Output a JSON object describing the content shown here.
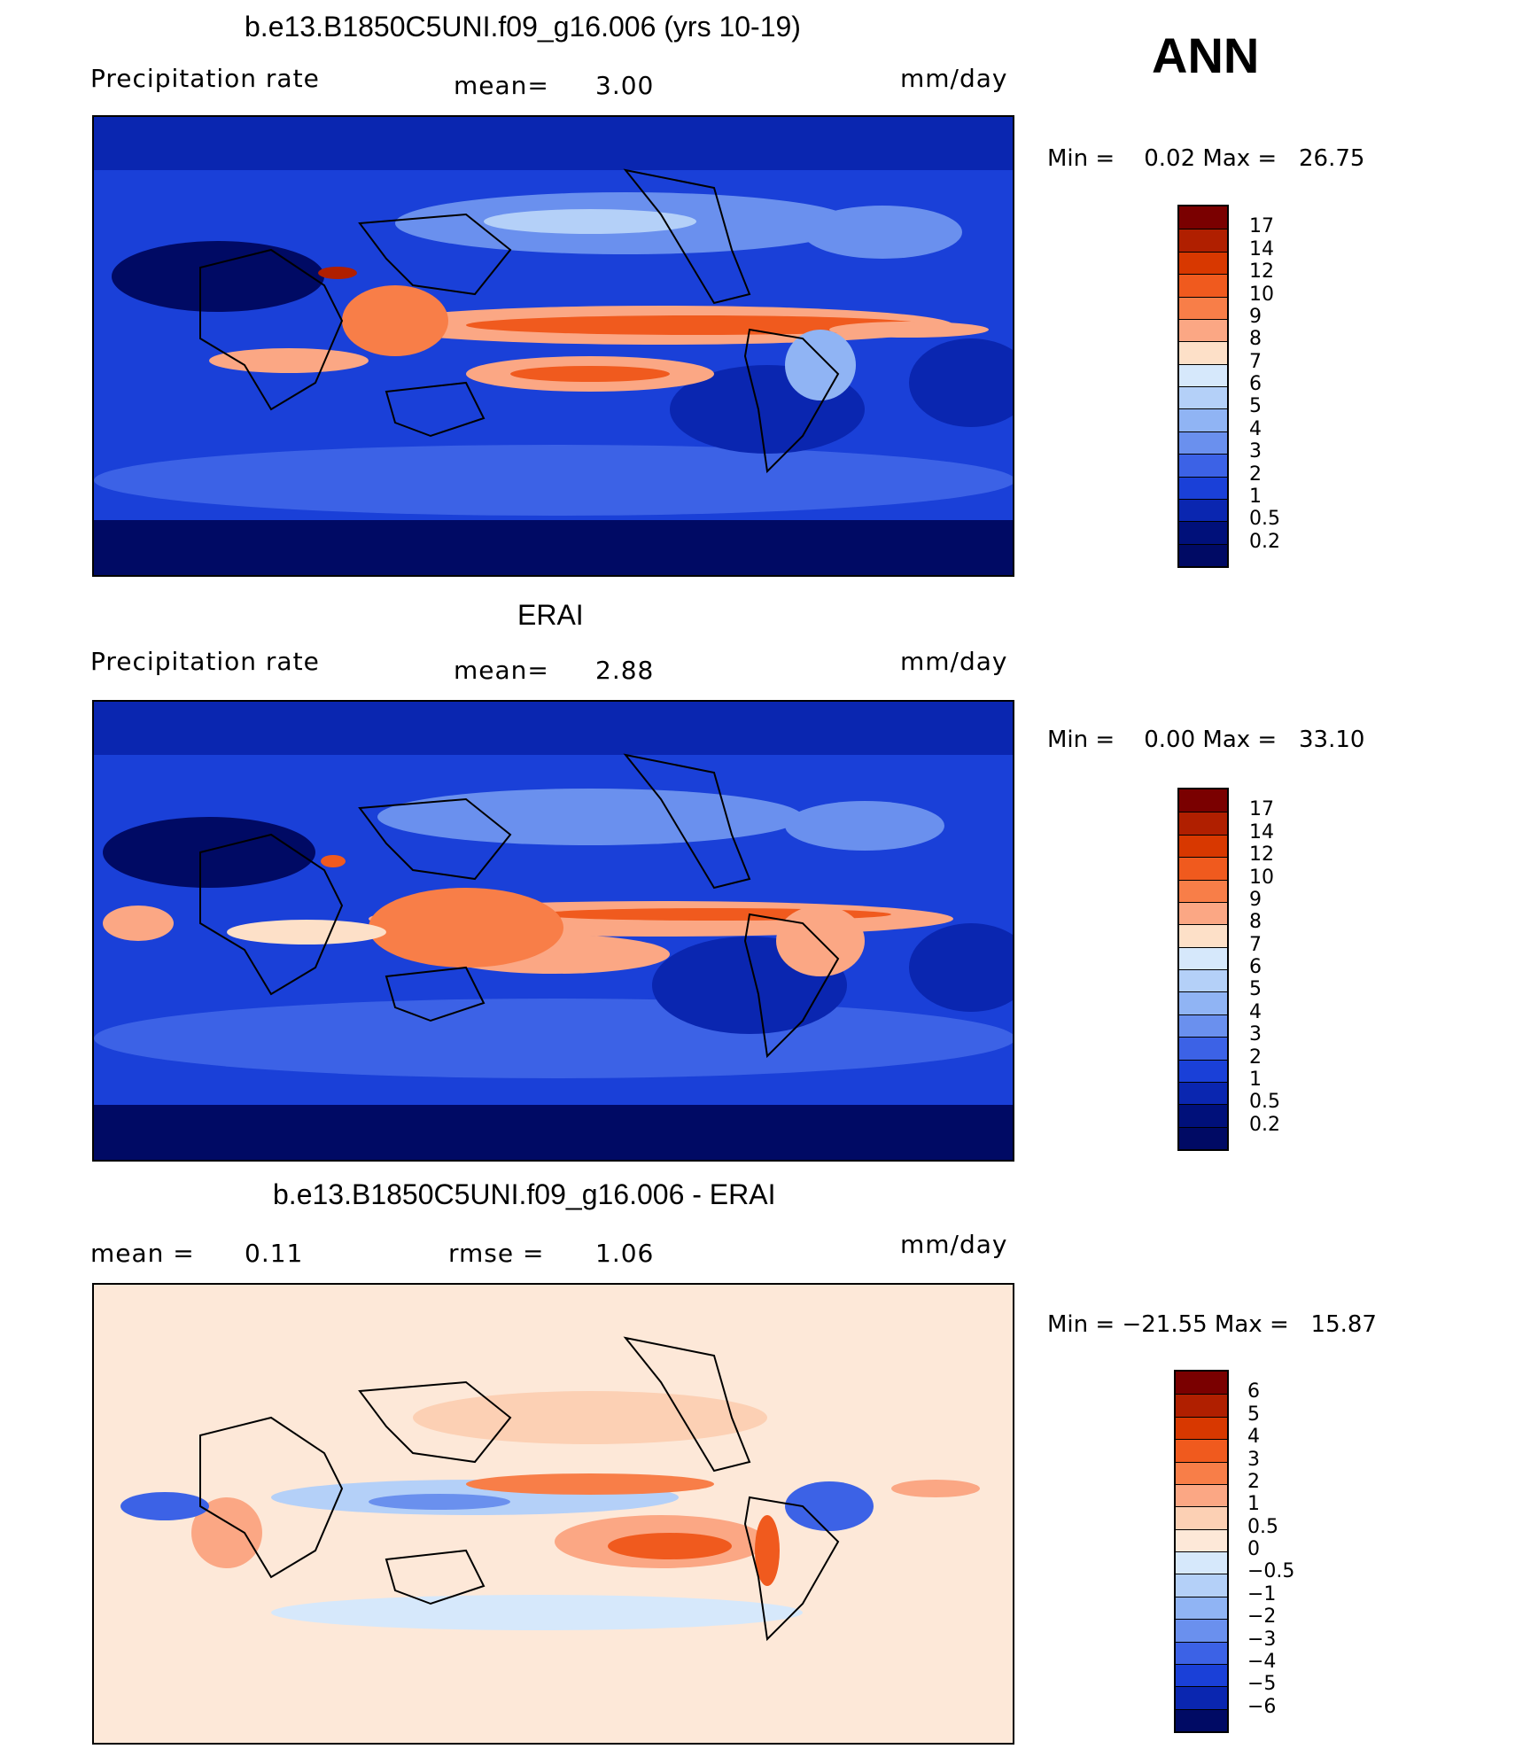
{
  "panels": [
    {
      "title": "b.e13.B1850C5UNI.f09_g16.006 (yrs 10-19)",
      "left_label": "Precipitation rate",
      "mid_label": "mean=",
      "mid_value": "3.00",
      "unit": "mm/day",
      "min_max_text": "Min =    0.02 Max =   26.75"
    },
    {
      "title": "ERAI",
      "left_label": "Precipitation rate",
      "mid_label": "mean=",
      "mid_value": "2.88",
      "unit": "mm/day",
      "min_max_text": "Min =    0.00 Max =   33.10"
    },
    {
      "title": "b.e13.B1850C5UNI.f09_g16.006 - ERAI",
      "left_label": "mean =",
      "left_value": "0.11",
      "mid_label": "rmse =",
      "mid_value": "1.06",
      "unit": "mm/day",
      "min_max_text": "Min = −21.55 Max =   15.87"
    }
  ],
  "season": "ANN",
  "chart_data": [
    {
      "type": "heatmap",
      "title": "b.e13.B1850C5UNI.f09_g16.006 (yrs 10-19)",
      "variable": "Precipitation rate",
      "units": "mm/day",
      "mean": 3.0,
      "min": 0.02,
      "max": 26.75,
      "colorbar_levels": [
        "17",
        "14",
        "12",
        "10",
        "9",
        "8",
        "7",
        "6",
        "5",
        "4",
        "3",
        "2",
        "1",
        "0.5",
        "0.2"
      ],
      "colors": [
        "#7a0000",
        "#b01f00",
        "#d83800",
        "#f05a1e",
        "#f87e48",
        "#fba784",
        "#fde0c8",
        "#d6e8fb",
        "#b4d0f8",
        "#90b4f4",
        "#6a90ee",
        "#3c62e6",
        "#1a40d8",
        "#0a26b0",
        "#00107a",
        "#000a64"
      ]
    },
    {
      "type": "heatmap",
      "title": "ERAI",
      "variable": "Precipitation rate",
      "units": "mm/day",
      "mean": 2.88,
      "min": 0.0,
      "max": 33.1,
      "colorbar_levels": [
        "17",
        "14",
        "12",
        "10",
        "9",
        "8",
        "7",
        "6",
        "5",
        "4",
        "3",
        "2",
        "1",
        "0.5",
        "0.2"
      ],
      "colors": [
        "#7a0000",
        "#b01f00",
        "#d83800",
        "#f05a1e",
        "#f87e48",
        "#fba784",
        "#fde0c8",
        "#d6e8fb",
        "#b4d0f8",
        "#90b4f4",
        "#6a90ee",
        "#3c62e6",
        "#1a40d8",
        "#0a26b0",
        "#00107a",
        "#000a64"
      ]
    },
    {
      "type": "heatmap",
      "title": "b.e13.B1850C5UNI.f09_g16.006 - ERAI",
      "units": "mm/day",
      "mean": 0.11,
      "rmse": 1.06,
      "min": -21.55,
      "max": 15.87,
      "colorbar_levels": [
        "6",
        "5",
        "4",
        "3",
        "2",
        "1",
        "0.5",
        "0",
        "−0.5",
        "−1",
        "−2",
        "−3",
        "−4",
        "−5",
        "−6"
      ],
      "colors": [
        "#7a0000",
        "#b01f00",
        "#d83800",
        "#f05a1e",
        "#f87e48",
        "#fba784",
        "#fcd0b4",
        "#fde8d8",
        "#d6e8fb",
        "#b4d0f8",
        "#90b4f4",
        "#6a90ee",
        "#3c62e6",
        "#1a40d8",
        "#0a26b0",
        "#000a64"
      ]
    }
  ]
}
